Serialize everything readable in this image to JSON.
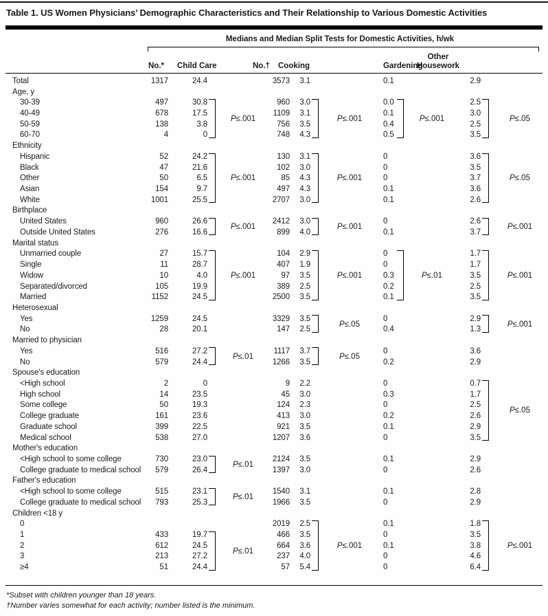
{
  "title": "Table 1. US Women Physicians’ Demographic Characteristics and Their Relationship to Various Domestic Activities",
  "header": {
    "spanner": "Medians and Median Split Tests for Domestic Activities, h/wk",
    "columns": [
      "No.*",
      "Child Care",
      "No.†",
      "Cooking",
      "Gardening",
      "Other Housework"
    ]
  },
  "footnotes": [
    "*Subset with children younger than 18 years.",
    "†Number varies somewhat for each activity; number listed is the minimum."
  ],
  "rows": [
    {
      "label": "Total",
      "indent": 0,
      "no1": "1317",
      "cc": "24.4",
      "no2": "3573",
      "cook": "3.1",
      "gard": "0.1",
      "hw": "2.9"
    },
    {
      "label": "Age, y",
      "indent": 0,
      "no1": "",
      "cc": "",
      "no2": "",
      "cook": "",
      "gard": "",
      "hw": ""
    },
    {
      "label": "30-39",
      "indent": 1,
      "no1": "497",
      "cc": "30.8",
      "no2": "960",
      "cook": "3.0",
      "gard": "0.0",
      "hw": "2.5"
    },
    {
      "label": "40-49",
      "indent": 1,
      "no1": "678",
      "cc": "17.5",
      "no2": "1109",
      "cook": "3.1",
      "gard": "0.1",
      "hw": "3.0"
    },
    {
      "label": "50-59",
      "indent": 1,
      "no1": "138",
      "cc": "3.8",
      "no2": "756",
      "cook": "3.5",
      "gard": "0.4",
      "hw": "2.5"
    },
    {
      "label": "60-70",
      "indent": 1,
      "no1": "4",
      "cc": "0",
      "no2": "748",
      "cook": "4.3",
      "gard": "0.5",
      "hw": "3.5"
    },
    {
      "label": "Ethnicity",
      "indent": 0,
      "no1": "",
      "cc": "",
      "no2": "",
      "cook": "",
      "gard": "",
      "hw": ""
    },
    {
      "label": "Hispanic",
      "indent": 1,
      "no1": "52",
      "cc": "24.2",
      "no2": "130",
      "cook": "3.1",
      "gard": "0",
      "hw": "3.6"
    },
    {
      "label": "Black",
      "indent": 1,
      "no1": "47",
      "cc": "21.6",
      "no2": "102",
      "cook": "3.0",
      "gard": "0",
      "hw": "3.5"
    },
    {
      "label": "Other",
      "indent": 1,
      "no1": "50",
      "cc": "6.5",
      "no2": "85",
      "cook": "4.3",
      "gard": "0",
      "hw": "3.7"
    },
    {
      "label": "Asian",
      "indent": 1,
      "no1": "154",
      "cc": "9.7",
      "no2": "497",
      "cook": "4.3",
      "gard": "0.1",
      "hw": "3.6"
    },
    {
      "label": "White",
      "indent": 1,
      "no1": "1001",
      "cc": "25.5",
      "no2": "2707",
      "cook": "3.0",
      "gard": "0.1",
      "hw": "2.6"
    },
    {
      "label": "Birthplace",
      "indent": 0,
      "no1": "",
      "cc": "",
      "no2": "",
      "cook": "",
      "gard": "",
      "hw": ""
    },
    {
      "label": "United States",
      "indent": 1,
      "no1": "960",
      "cc": "26.6",
      "no2": "2412",
      "cook": "3.0",
      "gard": "0",
      "hw": "2.6"
    },
    {
      "label": "Outside United States",
      "indent": 1,
      "no1": "276",
      "cc": "16.6",
      "no2": "899",
      "cook": "4.0",
      "gard": "0.1",
      "hw": "3.7"
    },
    {
      "label": "Marital status",
      "indent": 0,
      "no1": "",
      "cc": "",
      "no2": "",
      "cook": "",
      "gard": "",
      "hw": ""
    },
    {
      "label": "Unmarried couple",
      "indent": 1,
      "no1": "27",
      "cc": "15.7",
      "no2": "104",
      "cook": "2.9",
      "gard": "0",
      "hw": "1.7"
    },
    {
      "label": "Single",
      "indent": 1,
      "no1": "11",
      "cc": "28.7",
      "no2": "407",
      "cook": "1.9",
      "gard": "0",
      "hw": "1.7"
    },
    {
      "label": "Widow",
      "indent": 1,
      "no1": "10",
      "cc": "4.0",
      "no2": "97",
      "cook": "3.5",
      "gard": "0.3",
      "hw": "3.5"
    },
    {
      "label": "Separated/divorced",
      "indent": 1,
      "no1": "105",
      "cc": "19.9",
      "no2": "389",
      "cook": "2.5",
      "gard": "0.2",
      "hw": "2.5"
    },
    {
      "label": "Married",
      "indent": 1,
      "no1": "1152",
      "cc": "24.5",
      "no2": "2500",
      "cook": "3.5",
      "gard": "0.1",
      "hw": "3.5"
    },
    {
      "label": "Heterosexual",
      "indent": 0,
      "no1": "",
      "cc": "",
      "no2": "",
      "cook": "",
      "gard": "",
      "hw": ""
    },
    {
      "label": "Yes",
      "indent": 1,
      "no1": "1259",
      "cc": "24.5",
      "no2": "3329",
      "cook": "3.5",
      "gard": "0",
      "hw": "2.9"
    },
    {
      "label": "No",
      "indent": 1,
      "no1": "28",
      "cc": "20.1",
      "no2": "147",
      "cook": "2.5",
      "gard": "0.4",
      "hw": "1.3"
    },
    {
      "label": "Married to physician",
      "indent": 0,
      "no1": "",
      "cc": "",
      "no2": "",
      "cook": "",
      "gard": "",
      "hw": ""
    },
    {
      "label": "Yes",
      "indent": 1,
      "no1": "516",
      "cc": "27.2",
      "no2": "1117",
      "cook": "3.7",
      "gard": "0",
      "hw": "3.6"
    },
    {
      "label": "No",
      "indent": 1,
      "no1": "579",
      "cc": "24.4",
      "no2": "1266",
      "cook": "3.5",
      "gard": "0.2",
      "hw": "2.9"
    },
    {
      "label": "Spouse's education",
      "indent": 0,
      "no1": "",
      "cc": "",
      "no2": "",
      "cook": "",
      "gard": "",
      "hw": ""
    },
    {
      "label": "<High school",
      "indent": 1,
      "no1": "2",
      "cc": "0",
      "no2": "9",
      "cook": "2.2",
      "gard": "0",
      "hw": "0.7"
    },
    {
      "label": "High school",
      "indent": 1,
      "no1": "14",
      "cc": "23.5",
      "no2": "45",
      "cook": "3.0",
      "gard": "0.3",
      "hw": "1.7"
    },
    {
      "label": "Some college",
      "indent": 1,
      "no1": "50",
      "cc": "19.3",
      "no2": "124",
      "cook": "2.3",
      "gard": "0",
      "hw": "2.5"
    },
    {
      "label": "College graduate",
      "indent": 1,
      "no1": "161",
      "cc": "23.6",
      "no2": "413",
      "cook": "3.0",
      "gard": "0.2",
      "hw": "2.6"
    },
    {
      "label": "Graduate school",
      "indent": 1,
      "no1": "399",
      "cc": "22.5",
      "no2": "921",
      "cook": "3.5",
      "gard": "0.1",
      "hw": "2.9"
    },
    {
      "label": "Medical school",
      "indent": 1,
      "no1": "538",
      "cc": "27.0",
      "no2": "1207",
      "cook": "3.6",
      "gard": "0",
      "hw": "3.5"
    },
    {
      "label": "Mother's education",
      "indent": 0,
      "no1": "",
      "cc": "",
      "no2": "",
      "cook": "",
      "gard": "",
      "hw": ""
    },
    {
      "label": "<High school to some college",
      "indent": 1,
      "no1": "730",
      "cc": "23.0",
      "no2": "2124",
      "cook": "3.5",
      "gard": "0.1",
      "hw": "2.9"
    },
    {
      "label": "College graduate to medical school",
      "indent": 1,
      "no1": "579",
      "cc": "26.4",
      "no2": "1397",
      "cook": "3.0",
      "gard": "0",
      "hw": "2.6"
    },
    {
      "label": "Father's education",
      "indent": 0,
      "no1": "",
      "cc": "",
      "no2": "",
      "cook": "",
      "gard": "",
      "hw": ""
    },
    {
      "label": "<High school to some college",
      "indent": 1,
      "no1": "515",
      "cc": "23.1",
      "no2": "1540",
      "cook": "3.1",
      "gard": "0.1",
      "hw": "2.8"
    },
    {
      "label": "College graduate to medical school",
      "indent": 1,
      "no1": "793",
      "cc": "25.3",
      "no2": "1966",
      "cook": "3.5",
      "gard": "0",
      "hw": "2.9"
    },
    {
      "label": "Children <18 y",
      "indent": 0,
      "no1": "",
      "cc": "",
      "no2": "",
      "cook": "",
      "gard": "",
      "hw": ""
    },
    {
      "label": "0",
      "indent": 1,
      "no1": "",
      "cc": "",
      "no2": "2019",
      "cook": "2.5",
      "gard": "0.1",
      "hw": "1.8"
    },
    {
      "label": "1",
      "indent": 1,
      "no1": "433",
      "cc": "19.7",
      "no2": "466",
      "cook": "3.5",
      "gard": "0",
      "hw": "3.5"
    },
    {
      "label": "2",
      "indent": 1,
      "no1": "612",
      "cc": "24.5",
      "no2": "664",
      "cook": "3.6",
      "gard": "0.1",
      "hw": "3.8"
    },
    {
      "label": "3",
      "indent": 1,
      "no1": "213",
      "cc": "27.2",
      "no2": "237",
      "cook": "4.0",
      "gard": "0",
      "hw": "4.6"
    },
    {
      "label": "≥4",
      "indent": 1,
      "no1": "51",
      "cc": "24.4",
      "no2": "57",
      "cook": "5.4",
      "gard": "0",
      "hw": "6.4"
    }
  ],
  "brackets": [
    {
      "col": "cc",
      "from": 2,
      "to": 5,
      "p": "P≤.001"
    },
    {
      "col": "cc",
      "from": 7,
      "to": 11,
      "p": "P≤.001"
    },
    {
      "col": "cc",
      "from": 13,
      "to": 14,
      "p": "P≤.001"
    },
    {
      "col": "cc",
      "from": 16,
      "to": 20,
      "p": "P≤.001"
    },
    {
      "col": "cc",
      "from": 25,
      "to": 26,
      "p": "P≤.01"
    },
    {
      "col": "cc",
      "from": 35,
      "to": 36,
      "p": "P≤.01"
    },
    {
      "col": "cc",
      "from": 38,
      "to": 39,
      "p": "P≤.01"
    },
    {
      "col": "cc",
      "from": 42,
      "to": 45,
      "p": "P≤.01"
    },
    {
      "col": "cook",
      "from": 2,
      "to": 5,
      "p": "P≤.001"
    },
    {
      "col": "cook",
      "from": 7,
      "to": 11,
      "p": "P≤.001"
    },
    {
      "col": "cook",
      "from": 13,
      "to": 14,
      "p": "P≤.001"
    },
    {
      "col": "cook",
      "from": 16,
      "to": 20,
      "p": "P≤.001"
    },
    {
      "col": "cook",
      "from": 22,
      "to": 23,
      "p": "P≤.05"
    },
    {
      "col": "cook",
      "from": 25,
      "to": 26,
      "p": "P≤.05"
    },
    {
      "col": "cook",
      "from": 41,
      "to": 45,
      "p": "P≤.001"
    },
    {
      "col": "gard",
      "from": 2,
      "to": 5,
      "p": "P≤.001"
    },
    {
      "col": "gard",
      "from": 16,
      "to": 20,
      "p": "P≤.01"
    },
    {
      "col": "hw",
      "from": 2,
      "to": 5,
      "p": "P≤.05"
    },
    {
      "col": "hw",
      "from": 7,
      "to": 11,
      "p": "P≤.05"
    },
    {
      "col": "hw",
      "from": 13,
      "to": 14,
      "p": "P≤.001"
    },
    {
      "col": "hw",
      "from": 16,
      "to": 20,
      "p": "P≤.001"
    },
    {
      "col": "hw",
      "from": 22,
      "to": 23,
      "p": "P≤.001"
    },
    {
      "col": "hw",
      "from": 28,
      "to": 33,
      "p": "P≤.05"
    },
    {
      "col": "hw",
      "from": 41,
      "to": 45,
      "p": "P≤.001"
    }
  ]
}
